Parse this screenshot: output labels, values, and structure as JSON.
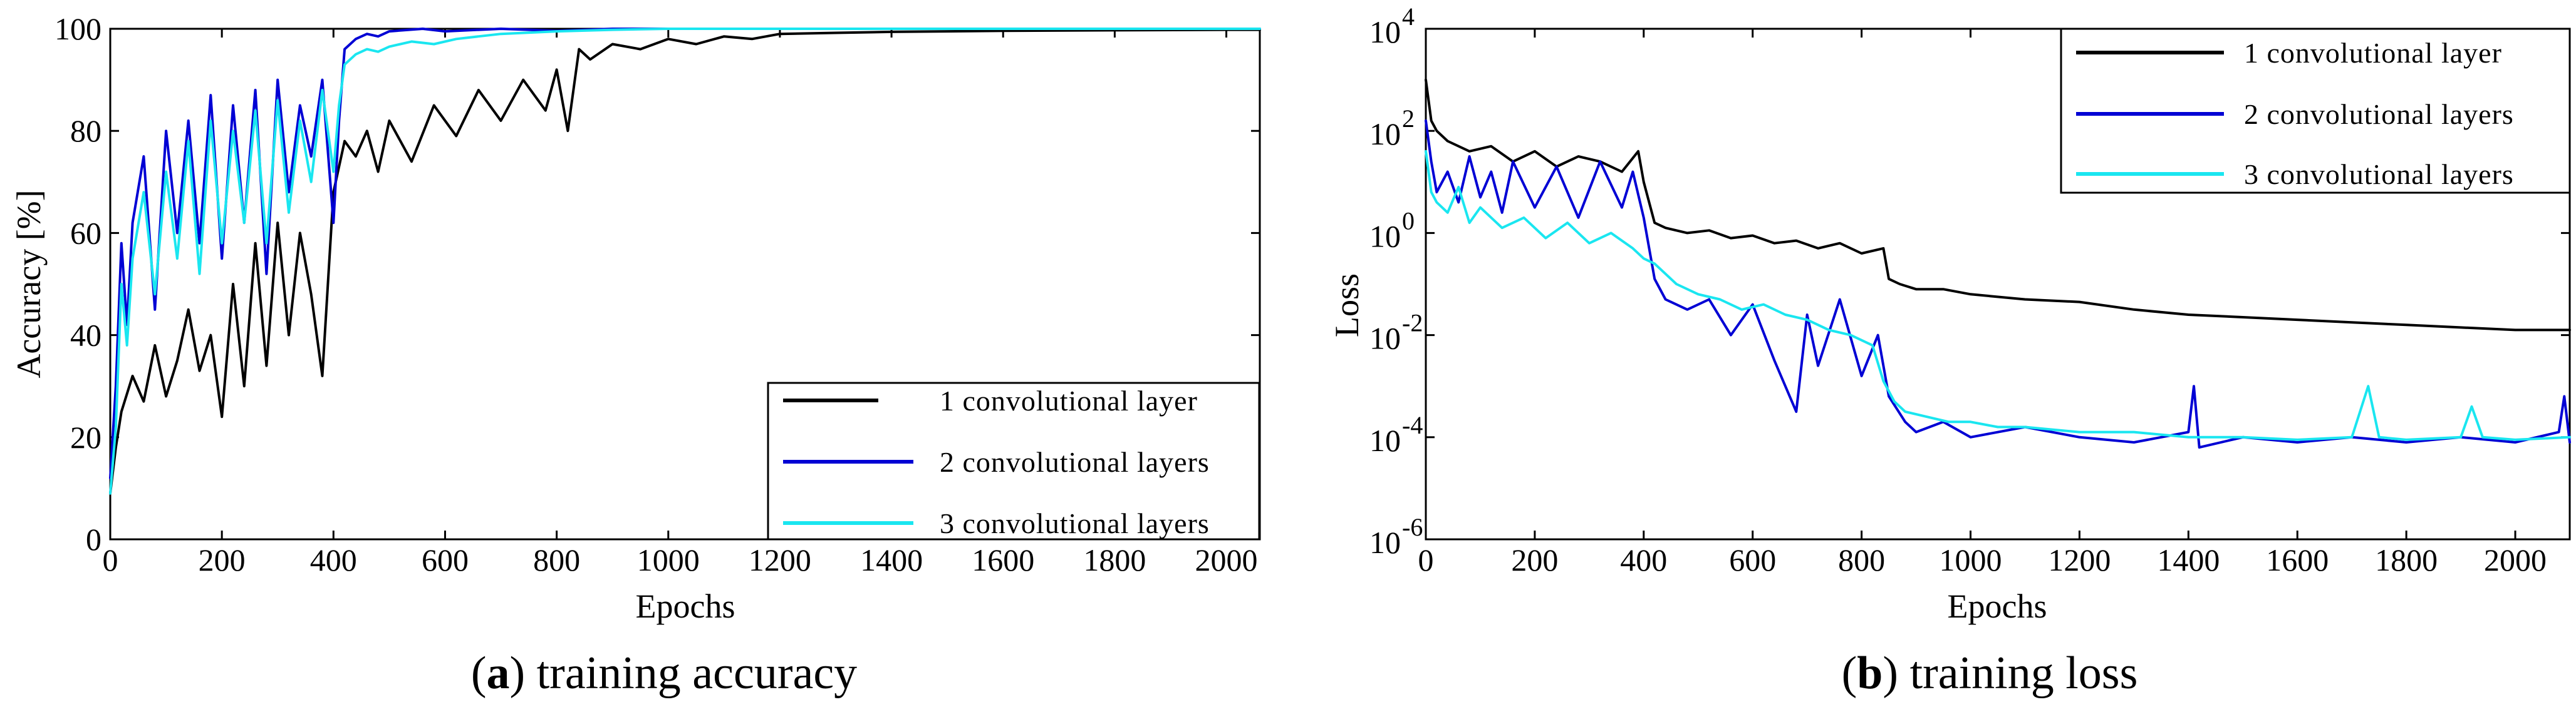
{
  "chart_data": [
    {
      "type": "line",
      "id": "accuracy",
      "caption_letter": "a",
      "caption_text": "training accuracy",
      "xlabel": "Epochs",
      "ylabel": "Accuracy [%]",
      "xlim": [
        0,
        2060
      ],
      "ylim": [
        0,
        100
      ],
      "yscale": "linear",
      "xticks": [
        0,
        200,
        400,
        600,
        800,
        1000,
        1200,
        1400,
        1600,
        1800,
        2000
      ],
      "xtick_labels": [
        "0",
        "200",
        "400",
        "600",
        "800",
        "1000",
        "1200",
        "1400",
        "1600",
        "1800",
        "2000"
      ],
      "yticks": [
        0,
        20,
        40,
        60,
        80,
        100
      ],
      "ytick_labels": [
        "0",
        "20",
        "40",
        "60",
        "80",
        "100"
      ],
      "legend_position": "bottom-right",
      "series": [
        {
          "name": "1 convolutional layer",
          "color": "#000000",
          "x": [
            0,
            10,
            20,
            40,
            60,
            80,
            100,
            120,
            140,
            160,
            180,
            200,
            220,
            240,
            260,
            280,
            300,
            320,
            340,
            360,
            380,
            400,
            420,
            440,
            460,
            480,
            500,
            540,
            580,
            620,
            660,
            700,
            740,
            780,
            800,
            820,
            840,
            860,
            900,
            950,
            1000,
            1050,
            1100,
            1150,
            1200,
            1300,
            1400,
            1500,
            1600,
            1800,
            2000,
            2060
          ],
          "y": [
            9,
            18,
            25,
            32,
            27,
            38,
            28,
            35,
            45,
            33,
            40,
            24,
            50,
            30,
            58,
            34,
            62,
            40,
            60,
            48,
            32,
            68,
            78,
            75,
            80,
            72,
            82,
            74,
            85,
            79,
            88,
            82,
            90,
            84,
            92,
            80,
            96,
            94,
            97,
            96,
            98,
            97,
            98.5,
            98,
            99,
            99.2,
            99.4,
            99.5,
            99.6,
            99.7,
            99.8,
            99.8
          ]
        },
        {
          "name": "2 convolutional layers",
          "color": "#0000d4",
          "x": [
            0,
            10,
            20,
            30,
            40,
            60,
            80,
            100,
            120,
            140,
            160,
            180,
            200,
            220,
            240,
            260,
            280,
            300,
            320,
            340,
            360,
            380,
            400,
            410,
            420,
            440,
            460,
            480,
            500,
            560,
            600,
            700,
            800,
            900,
            1000,
            1200,
            1500,
            2000,
            2060
          ],
          "y": [
            12,
            30,
            58,
            42,
            62,
            75,
            45,
            80,
            60,
            82,
            58,
            87,
            55,
            85,
            62,
            88,
            52,
            90,
            68,
            85,
            75,
            90,
            62,
            82,
            96,
            98,
            99,
            98.5,
            99.5,
            100,
            99.5,
            100,
            99.6,
            100,
            100,
            100,
            100,
            100,
            100
          ]
        },
        {
          "name": "3 convolutional layers",
          "color": "#1ae6f0",
          "x": [
            0,
            10,
            20,
            30,
            40,
            60,
            80,
            100,
            120,
            140,
            160,
            180,
            200,
            220,
            240,
            260,
            280,
            300,
            320,
            340,
            360,
            380,
            400,
            410,
            420,
            440,
            460,
            480,
            500,
            540,
            580,
            620,
            660,
            700,
            800,
            900,
            1000,
            1200,
            1500,
            2000,
            2060
          ],
          "y": [
            9,
            22,
            50,
            38,
            55,
            68,
            48,
            72,
            55,
            78,
            52,
            82,
            58,
            80,
            62,
            84,
            58,
            86,
            64,
            82,
            70,
            88,
            72,
            85,
            93,
            95,
            96,
            95.5,
            96.5,
            97.5,
            97,
            98,
            98.5,
            99,
            99.5,
            99.8,
            100,
            100,
            100,
            100,
            100
          ]
        }
      ]
    },
    {
      "type": "line",
      "id": "loss",
      "caption_letter": "b",
      "caption_text": "training loss",
      "xlabel": "Epochs",
      "ylabel": "Loss",
      "xlim": [
        0,
        2100
      ],
      "ylim": [
        -6,
        4
      ],
      "yscale": "log10",
      "xticks": [
        0,
        200,
        400,
        600,
        800,
        1000,
        1200,
        1400,
        1600,
        1800,
        2000
      ],
      "xtick_labels": [
        "0",
        "200",
        "400",
        "600",
        "800",
        "1000",
        "1200",
        "1400",
        "1600",
        "1800",
        "2000"
      ],
      "yticks": [
        -6,
        -4,
        -2,
        0,
        2,
        4
      ],
      "ytick_base": "10",
      "ytick_exponents": [
        "-6",
        "-4",
        "-2",
        "0",
        "2",
        "4"
      ],
      "legend_position": "top-right",
      "series": [
        {
          "name": "1 convolutional layer",
          "color": "#000000",
          "x": [
            0,
            10,
            20,
            40,
            80,
            120,
            160,
            200,
            240,
            280,
            320,
            360,
            390,
            400,
            420,
            440,
            480,
            520,
            560,
            600,
            640,
            680,
            720,
            760,
            800,
            840,
            850,
            870,
            900,
            950,
            1000,
            1100,
            1200,
            1300,
            1400,
            1500,
            1600,
            1700,
            1800,
            1900,
            2000,
            2100
          ],
          "y": [
            3.0,
            2.2,
            2.0,
            1.8,
            1.6,
            1.7,
            1.4,
            1.6,
            1.3,
            1.5,
            1.4,
            1.2,
            1.6,
            1.0,
            0.2,
            0.1,
            0.0,
            0.05,
            -0.1,
            -0.05,
            -0.2,
            -0.15,
            -0.3,
            -0.2,
            -0.4,
            -0.3,
            -0.9,
            -1.0,
            -1.1,
            -1.1,
            -1.2,
            -1.3,
            -1.35,
            -1.5,
            -1.6,
            -1.65,
            -1.7,
            -1.75,
            -1.8,
            -1.85,
            -1.9,
            -1.9
          ]
        },
        {
          "name": "2 convolutional layers",
          "color": "#0000d4",
          "x": [
            0,
            10,
            20,
            40,
            60,
            80,
            100,
            120,
            140,
            160,
            200,
            240,
            280,
            320,
            360,
            380,
            400,
            420,
            440,
            480,
            520,
            560,
            600,
            640,
            680,
            700,
            720,
            760,
            800,
            830,
            850,
            880,
            900,
            950,
            1000,
            1100,
            1200,
            1300,
            1400,
            1410,
            1420,
            1500,
            1600,
            1700,
            1800,
            1900,
            2000,
            2080,
            2090,
            2100
          ],
          "y": [
            2.2,
            1.4,
            0.8,
            1.2,
            0.6,
            1.5,
            0.7,
            1.2,
            0.4,
            1.4,
            0.5,
            1.3,
            0.3,
            1.4,
            0.5,
            1.2,
            0.3,
            -0.9,
            -1.3,
            -1.5,
            -1.3,
            -2.0,
            -1.4,
            -2.5,
            -3.5,
            -1.6,
            -2.6,
            -1.3,
            -2.8,
            -2.0,
            -3.2,
            -3.7,
            -3.9,
            -3.7,
            -4.0,
            -3.8,
            -4.0,
            -4.1,
            -3.9,
            -3.0,
            -4.2,
            -4.0,
            -4.1,
            -4.0,
            -4.1,
            -4.0,
            -4.1,
            -3.9,
            -3.2,
            -4.1
          ]
        },
        {
          "name": "3 convolutional layers",
          "color": "#1ae6f0",
          "x": [
            0,
            10,
            20,
            40,
            60,
            80,
            100,
            140,
            180,
            220,
            260,
            300,
            340,
            380,
            400,
            420,
            460,
            500,
            540,
            580,
            620,
            660,
            700,
            740,
            780,
            820,
            840,
            860,
            880,
            920,
            960,
            1000,
            1050,
            1100,
            1150,
            1200,
            1300,
            1400,
            1500,
            1600,
            1700,
            1730,
            1750,
            1800,
            1900,
            1920,
            1940,
            2000,
            2100
          ],
          "y": [
            1.6,
            0.8,
            0.6,
            0.4,
            0.9,
            0.2,
            0.5,
            0.1,
            0.3,
            -0.1,
            0.2,
            -0.2,
            0.0,
            -0.3,
            -0.5,
            -0.6,
            -1.0,
            -1.2,
            -1.3,
            -1.5,
            -1.4,
            -1.6,
            -1.7,
            -1.9,
            -2.0,
            -2.2,
            -2.9,
            -3.3,
            -3.5,
            -3.6,
            -3.7,
            -3.7,
            -3.8,
            -3.8,
            -3.85,
            -3.9,
            -3.9,
            -4.0,
            -4.0,
            -4.05,
            -4.0,
            -3.0,
            -4.0,
            -4.05,
            -4.0,
            -3.4,
            -4.0,
            -4.05,
            -4.0
          ]
        }
      ]
    }
  ]
}
